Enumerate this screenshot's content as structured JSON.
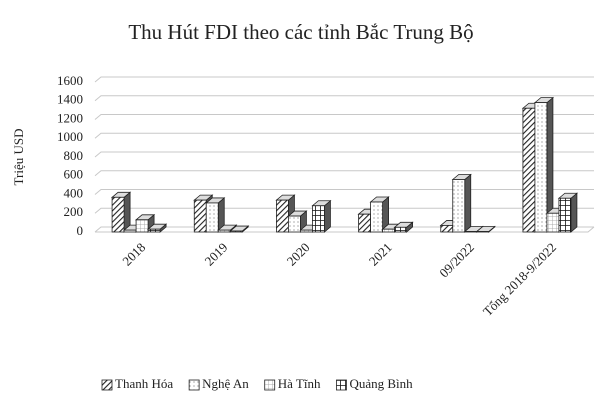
{
  "chart_data": {
    "type": "bar3d",
    "title": "Thu Hút FDI theo các tỉnh Bắc Trung Bộ",
    "y_label": "Triệu USD",
    "categories": [
      "2018",
      "2019",
      "2020",
      "2021",
      "09/2022",
      "Tổng 2018-9/2022"
    ],
    "series": [
      {
        "name": "Thanh Hóa",
        "color": "#222222",
        "values": [
          370,
          340,
          340,
          190,
          70,
          1320
        ]
      },
      {
        "name": "Nghệ An",
        "color": "#777777",
        "values": [
          20,
          310,
          170,
          320,
          560,
          1380
        ]
      },
      {
        "name": "Hà Tĩnh",
        "color": "#999999",
        "values": [
          130,
          20,
          20,
          30,
          5,
          200
        ]
      },
      {
        "name": "Quảng Bình",
        "color": "#111111",
        "values": [
          30,
          10,
          280,
          50,
          5,
          360
        ]
      }
    ],
    "ylim": [
      0,
      1600
    ],
    "yticks": [
      0,
      200,
      400,
      600,
      800,
      1000,
      1200,
      1400,
      1600
    ],
    "grid": true,
    "legend": "bottom"
  }
}
